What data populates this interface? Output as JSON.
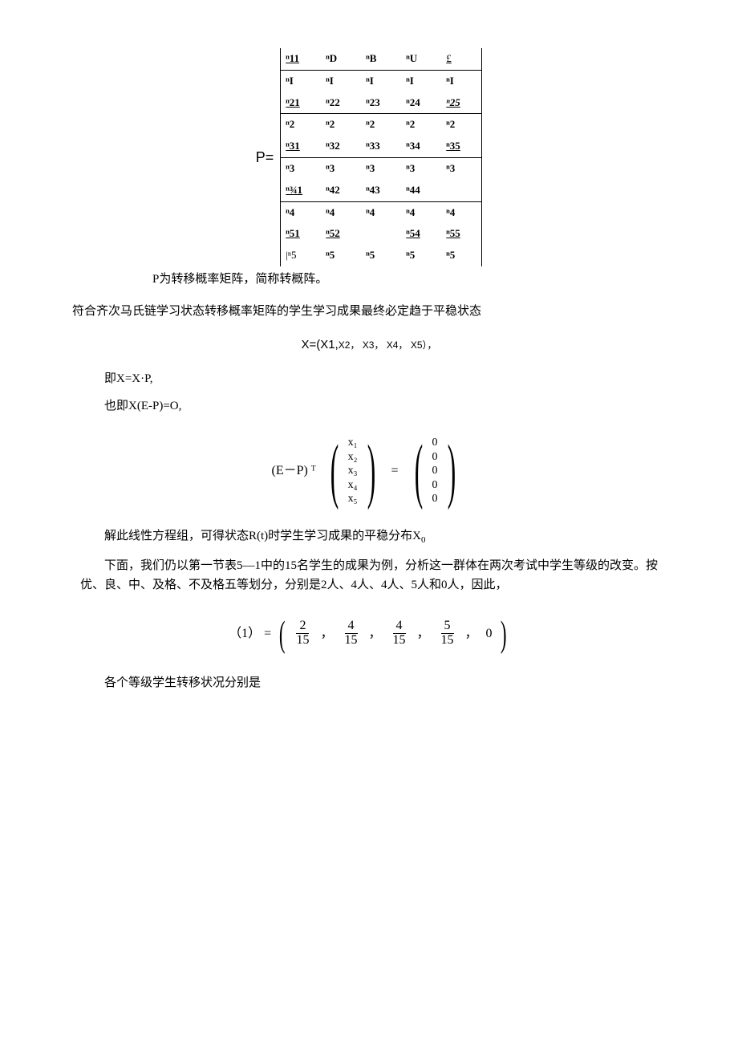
{
  "matrix": {
    "label": "P=",
    "rows": [
      [
        {
          "t": "ⁿ11",
          "cls": "ul"
        },
        {
          "t": "ⁿD",
          "cls": "b"
        },
        {
          "t": "ⁿB",
          "cls": "b"
        },
        {
          "t": "ⁿU",
          "cls": "b"
        },
        {
          "t": "£",
          "cls": "pound"
        }
      ],
      [
        {
          "t": "ⁿI",
          "cls": "b"
        },
        {
          "t": "ⁿI",
          "cls": "b"
        },
        {
          "t": "ⁿI",
          "cls": "b"
        },
        {
          "t": "ⁿI",
          "cls": "b"
        },
        {
          "t": "ⁿI",
          "cls": "b"
        }
      ],
      [
        {
          "t": "ⁿ21",
          "cls": "ul"
        },
        {
          "t": "ⁿ22",
          "cls": "b"
        },
        {
          "t": "ⁿ23",
          "cls": "b"
        },
        {
          "t": "ⁿ24",
          "cls": "b"
        },
        {
          "t": "ⁿ25",
          "cls": "ul",
          "style": "font-style:italic;"
        }
      ],
      [
        {
          "t": "ⁿ2",
          "cls": "b"
        },
        {
          "t": "ⁿ2",
          "cls": "b"
        },
        {
          "t": "ⁿ2",
          "cls": "b"
        },
        {
          "t": "ⁿ2",
          "cls": "b"
        },
        {
          "t": "ⁿ2",
          "cls": "b"
        }
      ],
      [
        {
          "t": "ⁿ31",
          "cls": "ul"
        },
        {
          "t": "ⁿ32",
          "cls": "b"
        },
        {
          "t": "ⁿ33",
          "cls": "b"
        },
        {
          "t": "ⁿ34",
          "cls": "b"
        },
        {
          "t": "ⁿ35",
          "cls": "ul"
        }
      ],
      [
        {
          "t": "ⁿ3",
          "cls": "b"
        },
        {
          "t": "ⁿ3",
          "cls": "b"
        },
        {
          "t": "ⁿ3",
          "cls": "b"
        },
        {
          "t": "ⁿ3",
          "cls": "b"
        },
        {
          "t": "ⁿ3",
          "cls": "b"
        }
      ],
      [
        {
          "t": "ⁿ¾1",
          "cls": "ul"
        },
        {
          "t": "ⁿ42",
          "cls": "b"
        },
        {
          "t": "ⁿ43",
          "cls": "b"
        },
        {
          "t": "ⁿ44",
          "cls": "b"
        },
        {
          "t": "",
          "cls": ""
        }
      ],
      [
        {
          "t": "ⁿ4",
          "cls": "b"
        },
        {
          "t": "ⁿ4",
          "cls": "b"
        },
        {
          "t": "ⁿ4",
          "cls": "b"
        },
        {
          "t": "ⁿ4",
          "cls": "b"
        },
        {
          "t": "ⁿ4",
          "cls": "b"
        }
      ],
      [
        {
          "t": "ⁿ51",
          "cls": "ul"
        },
        {
          "t": "ⁿ52",
          "cls": "ul"
        },
        {
          "t": "",
          "cls": ""
        },
        {
          "t": "ⁿ54",
          "cls": "ul"
        },
        {
          "t": "ⁿ55",
          "cls": "ul"
        }
      ],
      [
        {
          "t": "|ⁿ5",
          "cls": ""
        },
        {
          "t": "ⁿ5",
          "cls": "b"
        },
        {
          "t": "ⁿ5",
          "cls": "b"
        },
        {
          "t": "ⁿ5",
          "cls": "b"
        },
        {
          "t": "ⁿ5",
          "cls": "b"
        }
      ]
    ],
    "dividerAfter": [
      0,
      2,
      4,
      6
    ]
  },
  "caption": "P为转移概率矩阵，简称转概阵。",
  "para1": "符合齐次马氏链学习状态转移概率矩阵的学生学习成果最终必定趋于平稳状态",
  "xvec": "X=(X1,",
  "xvec_subs": [
    "X2，",
    "X3，",
    "X4，",
    "X5），"
  ],
  "eq1": "即X=X·P,",
  "eq2": "也即X(E-P)=O,",
  "matrixEq": {
    "left": "(E－P) ᵀ",
    "x": [
      "x₁",
      "x₂",
      "x₃",
      "x₄",
      "x₅"
    ],
    "eq": "=",
    "zero": [
      "0",
      "0",
      "0",
      "0",
      "0"
    ]
  },
  "para2_a": "解此线性方程组，可得状态R(t)时学生学习成果的平稳分布X",
  "para2_b": "0",
  "para3": "下面，我们仍以第一节表5—1中的15名学生的成果为例，分析这一群体在两次考试中学生等级的改变。按优、良、中、及格、不及格五等划分，分别是2人、4人、4人、5人和0人，因此，",
  "fracEq": {
    "left": "（1） =",
    "items": [
      {
        "num": "2",
        "den": "15"
      },
      {
        "num": "4",
        "den": "15"
      },
      {
        "num": "4",
        "den": "15"
      },
      {
        "num": "5",
        "den": "15"
      }
    ],
    "last": "0"
  },
  "para4": "各个等级学生转移状况分别是"
}
